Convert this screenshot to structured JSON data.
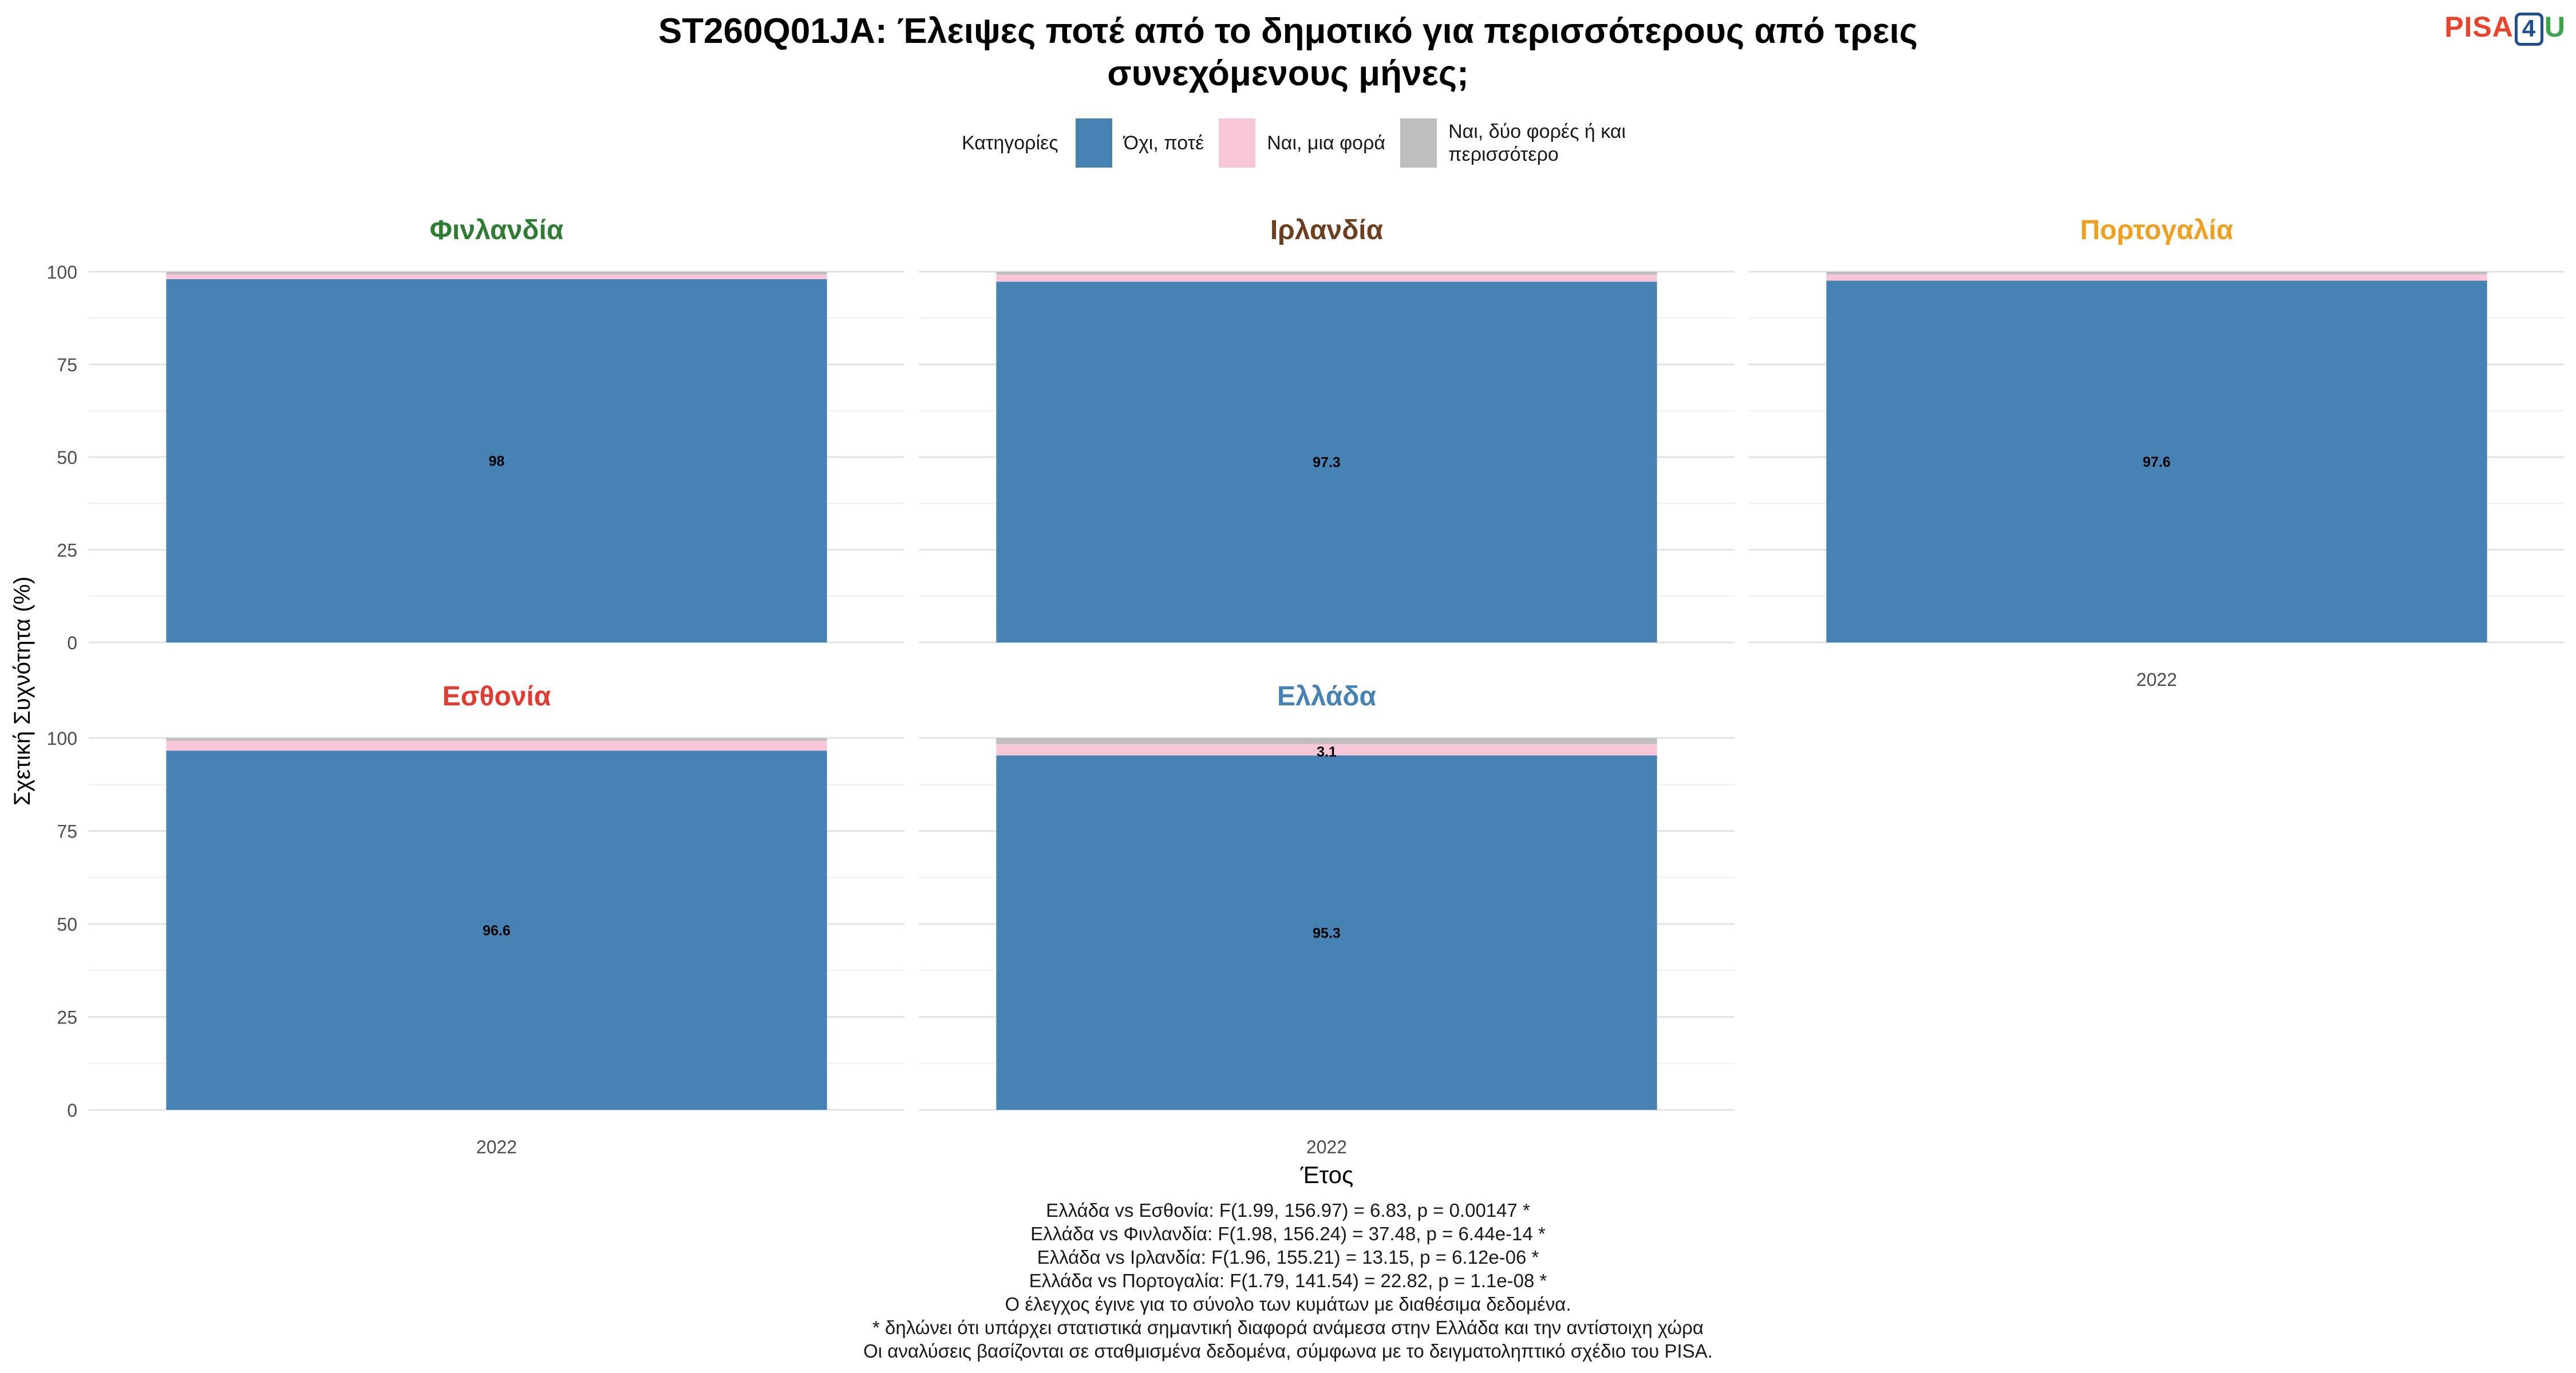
{
  "title_line1": "ST260Q01JA: Έλειψες ποτέ από το δημοτικό για περισσότερους από τρεις",
  "title_line2": "συνεχόμενους μήνες;",
  "brand": {
    "text_a": "PISA",
    "text_b": "4",
    "text_c": "U",
    "color_a": "#e8432c",
    "color_b": "#1f4f8f",
    "color_c": "#3aa54a"
  },
  "legend": {
    "title": "Κατηγορίες",
    "items": [
      {
        "label": "Όχι, ποτέ",
        "color": "#4682b4"
      },
      {
        "label": "Ναι, μια φορά",
        "color": "#f7c6d9"
      },
      {
        "label": "Ναι, δύο φορές ή και περισσότερο",
        "color": "#bebebe"
      }
    ]
  },
  "chart_data": {
    "type": "bar",
    "stacked": true,
    "ylabel": "Σχετική Συχνότητα (%)",
    "xlabel": "Έτος",
    "ylim": [
      0,
      100
    ],
    "yticks": [
      0,
      25,
      50,
      75,
      100
    ],
    "grid": true,
    "legend_position": "top",
    "categories": [
      "2022"
    ],
    "series_names": [
      "Όχι, ποτέ",
      "Ναι, μια φορά",
      "Ναι, δύο φορές ή και περισσότερο"
    ],
    "panels": [
      {
        "title": "Φινλανδία",
        "title_color": "#2e7d32",
        "x": "2022",
        "values": [
          98.0,
          1.3,
          0.7
        ],
        "labels": [
          "98",
          "",
          ""
        ],
        "show_x_axis": false
      },
      {
        "title": "Ιρλανδία",
        "title_color": "#6b3f1f",
        "x": "2022",
        "values": [
          97.3,
          1.9,
          0.8
        ],
        "labels": [
          "97.3",
          "",
          ""
        ],
        "show_x_axis": false
      },
      {
        "title": "Πορτογαλία",
        "title_color": "#f0a020",
        "x": "2022",
        "values": [
          97.6,
          1.7,
          0.7
        ],
        "labels": [
          "97.6",
          "",
          ""
        ],
        "show_x_axis": true
      },
      {
        "title": "Εσθονία",
        "title_color": "#e03c31",
        "x": "2022",
        "values": [
          96.6,
          2.7,
          0.7
        ],
        "labels": [
          "96.6",
          "",
          ""
        ],
        "show_x_axis": true
      },
      {
        "title": "Ελλάδα",
        "title_color": "#4682b4",
        "x": "2022",
        "values": [
          95.3,
          3.1,
          1.6
        ],
        "labels": [
          "95.3",
          "3.1",
          ""
        ],
        "show_x_axis": true
      }
    ]
  },
  "notes": [
    "Ελλάδα vs Εσθονία: F(1.99, 156.97) = 6.83, p = 0.00147 *",
    "Ελλάδα vs Φινλανδία: F(1.98, 156.24) = 37.48, p = 6.44e-14 *",
    "Ελλάδα vs Ιρλανδία: F(1.96, 155.21) = 13.15, p = 6.12e-06 *",
    "Ελλάδα vs Πορτογαλία: F(1.79, 141.54) = 22.82, p = 1.1e-08 *",
    "Ο έλεγχος έγινε για το σύνολο των κυμάτων με διαθέσιμα δεδομένα.",
    "* δηλώνει ότι υπάρχει στατιστικά σημαντική διαφορά ανάμεσα στην Ελλάδα και την αντίστοιχη χώρα",
    "Οι αναλύσεις βασίζονται σε σταθμισμένα δεδομένα, σύμφωνα με το δειγματοληπτικό σχέδιο του PISA."
  ]
}
